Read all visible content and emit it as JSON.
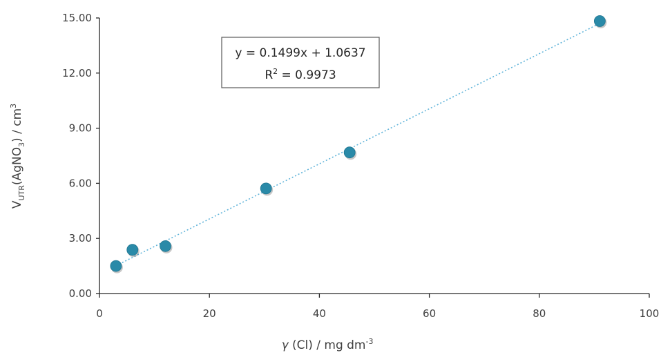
{
  "chart_data": {
    "type": "scatter",
    "x": [
      3,
      6,
      12,
      30.3,
      45.5,
      91
    ],
    "y": [
      1.5,
      2.38,
      2.58,
      5.72,
      7.68,
      14.83
    ],
    "xlim": [
      0,
      100
    ],
    "ylim": [
      0,
      15
    ],
    "xticks": [
      "0",
      "20",
      "40",
      "60",
      "80",
      "100"
    ],
    "yticks": [
      "0.00",
      "3.00",
      "6.00",
      "9.00",
      "12.00",
      "15.00"
    ],
    "xlabel": {
      "var": "γ",
      "main": " (Cl) / mg dm",
      "sup": "-3"
    },
    "ylabel": {
      "v": "V",
      "sub1": "UTR",
      "mid": "(AgNO",
      "sub2": "3",
      "end": ") / cm",
      "sup": "3"
    },
    "trendline": {
      "slope": 0.1499,
      "intercept": 1.0637,
      "style": "dotted",
      "color": "#5fb3d9"
    },
    "equation": {
      "line1": "y = 0.1499x + 1.0637",
      "r2_label": "R",
      "r2_sup": "2",
      "r2_value": " = 0.9973"
    },
    "marker_color": "#2a8aa8",
    "grid": false
  }
}
